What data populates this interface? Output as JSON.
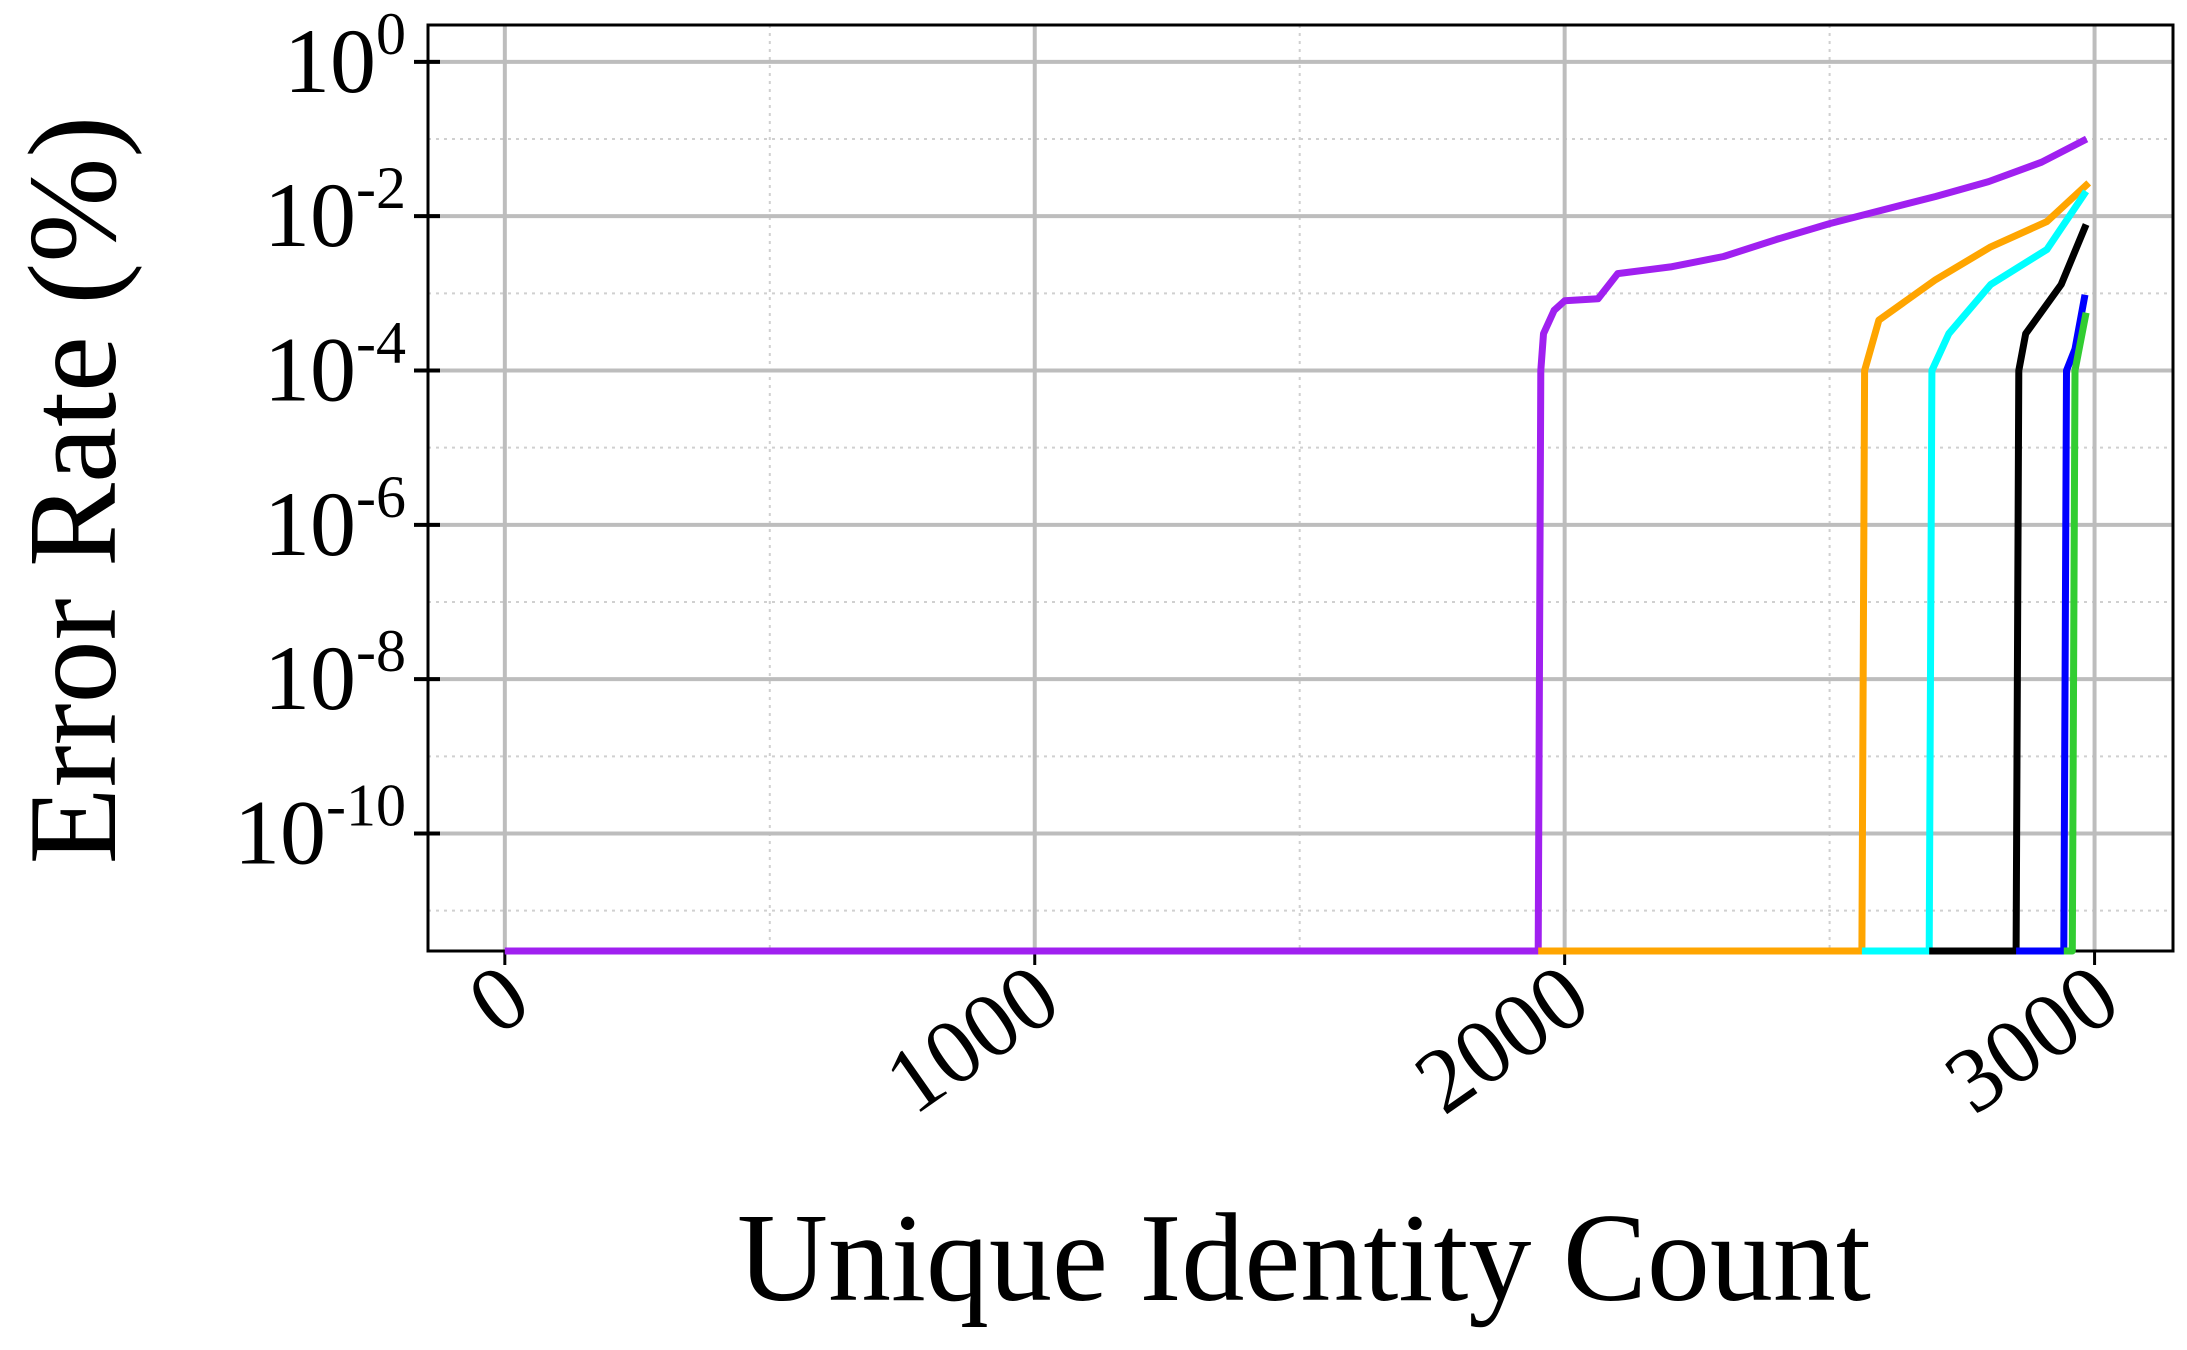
{
  "chart_data": {
    "type": "line",
    "xlabel": "Unique Identity Count",
    "ylabel": "Error Rate (%)",
    "xlim": [
      -145,
      3148
    ],
    "xticks": [
      0,
      1000,
      2000,
      3000
    ],
    "xminorticks": [
      500,
      1500,
      2500
    ],
    "ylim": [
      3e-12,
      3
    ],
    "yscale": "log",
    "yticks": [
      {
        "value": 1,
        "label": "10^0"
      },
      {
        "value": 0.01,
        "label": "10^-2"
      },
      {
        "value": 0.0001,
        "label": "10^-4"
      },
      {
        "value": 1e-06,
        "label": "10^-6"
      },
      {
        "value": 1e-08,
        "label": "10^-8"
      },
      {
        "value": 1e-10,
        "label": "10^-10"
      }
    ],
    "yminorticks": [
      0.1,
      0.001,
      1e-05,
      1e-07,
      1e-09,
      1e-11
    ],
    "grid": true,
    "series": [
      {
        "color": "#a020f0",
        "x": [
          0,
          1950,
          1955,
          1960,
          1980,
          2000,
          2063,
          2100,
          2200,
          2300,
          2400,
          2500,
          2600,
          2700,
          2800,
          2900,
          2985
        ],
        "values": [
          3e-12,
          3e-12,
          0.0001,
          0.0003,
          0.0006,
          0.0008,
          0.00085,
          0.0018,
          0.0022,
          0.003,
          0.005,
          0.008,
          0.012,
          0.018,
          0.028,
          0.05,
          0.1
        ]
      },
      {
        "color": "#ffa500",
        "x": [
          1950,
          2561,
          2566,
          2593,
          2700,
          2804,
          2910,
          2989
        ],
        "values": [
          3e-12,
          3e-12,
          0.0001,
          0.00045,
          0.0015,
          0.004,
          0.0085,
          0.027
        ]
      },
      {
        "color": "#00ffff",
        "x": [
          2561,
          2688,
          2693,
          2725,
          2804,
          2910,
          2984
        ],
        "values": [
          3e-12,
          3e-12,
          0.0001,
          0.0003,
          0.0013,
          0.0037,
          0.021
        ]
      },
      {
        "color": "#000000",
        "x": [
          2688,
          2852,
          2857,
          2870,
          2937,
          2984
        ],
        "values": [
          3e-12,
          3e-12,
          0.0001,
          0.0003,
          0.0013,
          0.0078
        ]
      },
      {
        "color": "#0000ff",
        "x": [
          2852,
          2942,
          2947,
          2963,
          2982
        ],
        "values": [
          3e-12,
          3e-12,
          0.0001,
          0.00019,
          0.00096
        ]
      },
      {
        "color": "#32cd32",
        "x": [
          2942,
          2958,
          2963,
          2984
        ],
        "values": [
          3e-12,
          3e-12,
          0.0001,
          0.00056
        ]
      }
    ]
  }
}
